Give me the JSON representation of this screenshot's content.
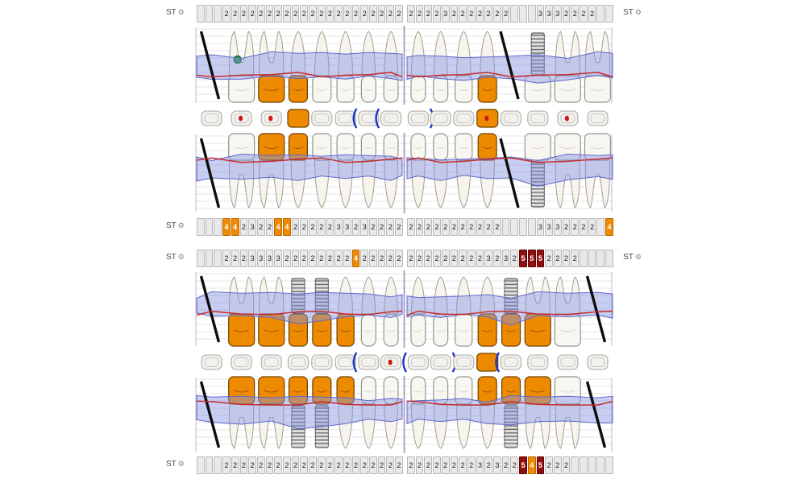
{
  "labels": {
    "st": "ST"
  },
  "colors": {
    "crown_orange": "#EE8A00",
    "highlight_orange": "#F08A00",
    "alert_dark_red": "#930F0F",
    "gingival_line_red": "#C62B2B",
    "attachment_band_blue": "#8690E2",
    "implant_gray": "#CECECE",
    "marker_green": "#1EA53C",
    "brace_blue": "#1B35CE",
    "cell_bg": "#E9E9E9",
    "cell_border": "#B9B9B9",
    "missing_tooth_line": "#0D0D0D"
  },
  "probing_rows": {
    "upper_buccal": {
      "label_left": "ST",
      "label_right": "ST",
      "left": [
        "",
        "",
        "",
        "2",
        "2",
        "2",
        "2",
        "2",
        "2",
        "2",
        "2",
        "2",
        "2",
        "2",
        "2",
        "2",
        "2",
        "2",
        "2",
        "2",
        "2",
        "2",
        "2",
        "2"
      ],
      "right": [
        "2",
        "2",
        "2",
        "2",
        "3",
        "2",
        "2",
        "2",
        "2",
        "2",
        "2",
        "2",
        "",
        "",
        "",
        "3",
        "3",
        "3",
        "2",
        "2",
        "2",
        "2",
        "",
        ""
      ]
    },
    "upper_palatal": {
      "label_left": "ST",
      "left": [
        "",
        "",
        "",
        "4o",
        "4o",
        "2",
        "3",
        "2",
        "2",
        "4o",
        "4o",
        "2",
        "2",
        "2",
        "2",
        "2",
        "3",
        "3",
        "2",
        "3",
        "2",
        "2",
        "2",
        "2"
      ],
      "right": [
        "2",
        "2",
        "2",
        "2",
        "2",
        "2",
        "2",
        "2",
        "2",
        "2",
        "2",
        "",
        "",
        "",
        "",
        "3",
        "3",
        "3",
        "2",
        "2",
        "2",
        "2",
        "",
        "4o"
      ]
    },
    "lower_lingual": {
      "label_left": "ST",
      "label_right": "ST",
      "left": [
        "",
        "",
        "",
        "2",
        "2",
        "2",
        "3",
        "3",
        "3",
        "3",
        "2",
        "2",
        "2",
        "2",
        "2",
        "2",
        "2",
        "2",
        "4o",
        "2",
        "2",
        "2",
        "2",
        "2"
      ],
      "right": [
        "2",
        "2",
        "2",
        "2",
        "2",
        "2",
        "2",
        "2",
        "2",
        "3",
        "2",
        "3",
        "2",
        "5r",
        "5r",
        "5r",
        "2",
        "2",
        "2",
        "2",
        "",
        "",
        "",
        ""
      ]
    },
    "lower_buccal": {
      "label_left": "ST",
      "left": [
        "",
        "",
        "",
        "2",
        "2",
        "2",
        "2",
        "2",
        "2",
        "2",
        "2",
        "2",
        "2",
        "2",
        "2",
        "2",
        "2",
        "2",
        "2",
        "2",
        "2",
        "2",
        "2",
        "2"
      ],
      "right": [
        "2",
        "2",
        "2",
        "2",
        "2",
        "2",
        "2",
        "2",
        "3",
        "2",
        "3",
        "2",
        "2",
        "5r",
        "4o",
        "5r",
        "2",
        "2",
        "2",
        "",
        "",
        "",
        "",
        ""
      ]
    }
  },
  "arches": {
    "upper_buccal": [
      "Mx",
      "Mg",
      "Mc",
      "Pc",
      "P",
      "C",
      "I",
      "I",
      "I",
      "I",
      "C",
      "Pc",
      "Px",
      "Mi",
      "M",
      "M"
    ],
    "upper_palatal": [
      "Mx",
      "M",
      "Mc",
      "Pc",
      "P",
      "C",
      "I",
      "I",
      "I",
      "I",
      "C",
      "Pc",
      "Px",
      "Mi",
      "M",
      "M"
    ],
    "lower_lingual": [
      "Mx",
      "Mc",
      "Mc",
      "Pci",
      "Pci",
      "Cc",
      "I",
      "I",
      "I",
      "I",
      "C",
      "Pc",
      "Pci",
      "Mc",
      "M",
      "Mx"
    ],
    "lower_buccal": [
      "Mx",
      "Mc",
      "Mc",
      "Pci",
      "Pci",
      "Cc",
      "I",
      "I",
      "I",
      "I",
      "C",
      "Pc",
      "Pci",
      "Mc",
      "M",
      "Mx"
    ]
  },
  "occlusal": {
    "upper": [
      {},
      {
        "dot": 1
      },
      {
        "dot": 1
      },
      {
        "crown": 1
      },
      {},
      {},
      {
        "brace": "L"
      },
      {
        "brace": "L"
      },
      {
        "brace": "R"
      },
      {},
      {},
      {
        "crown": 1,
        "dot": 1
      },
      {},
      {},
      {
        "dot": 1
      },
      {}
    ],
    "lower": [
      {},
      {},
      {},
      {},
      {},
      {},
      {
        "brace": "L"
      },
      {
        "dot": 1
      },
      {
        "brace": "L"
      },
      {
        "brace": "R"
      },
      {},
      {
        "crown": 1
      },
      {
        "brace": "L"
      },
      {},
      {},
      {}
    ]
  }
}
